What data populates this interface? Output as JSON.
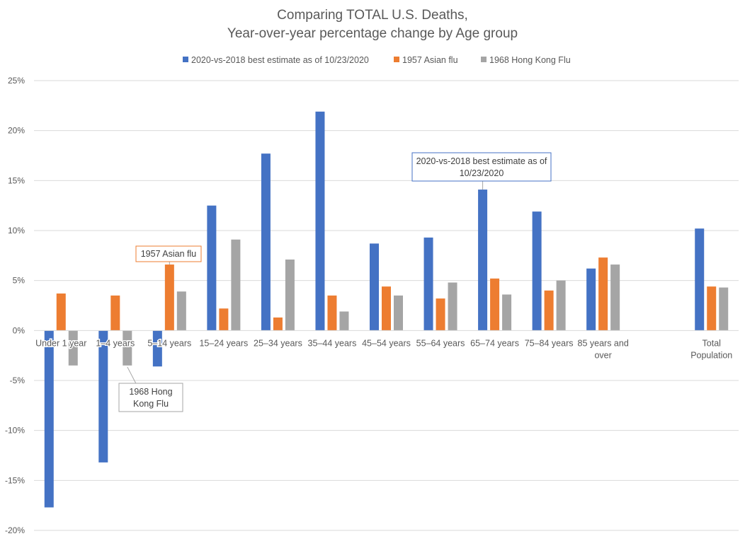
{
  "chart_data": {
    "type": "bar",
    "title": [
      "Comparing TOTAL U.S. Deaths,",
      "Year-over-year percentage change by Age group"
    ],
    "categories": [
      [
        "Under 1 year"
      ],
      [
        "1–4 years"
      ],
      [
        "5–14 years"
      ],
      [
        "15–24 years"
      ],
      [
        "25–34 years"
      ],
      [
        "35–44 years"
      ],
      [
        "45–54 years"
      ],
      [
        "55–64 years"
      ],
      [
        "65–74 years"
      ],
      [
        "75–84 years"
      ],
      [
        "85 years and",
        "over"
      ],
      [
        ""
      ],
      [
        "Total",
        "Population"
      ]
    ],
    "series": [
      {
        "name": "2020-vs-2018 best estimate as of 10/23/2020",
        "color": "#4472C4",
        "values": [
          -17.7,
          -13.2,
          -3.6,
          12.5,
          17.7,
          21.9,
          8.7,
          9.3,
          14.1,
          11.9,
          6.2,
          null,
          10.2
        ]
      },
      {
        "name": "1957 Asian flu",
        "color": "#ED7D31",
        "values": [
          3.7,
          3.5,
          6.6,
          2.2,
          1.3,
          3.5,
          4.4,
          3.2,
          5.2,
          4.0,
          7.3,
          null,
          4.4
        ]
      },
      {
        "name": "1968 Hong Kong Flu",
        "color": "#A5A5A5",
        "values": [
          -3.5,
          -3.5,
          3.9,
          9.1,
          7.1,
          1.9,
          3.5,
          4.8,
          3.6,
          5.0,
          6.6,
          null,
          4.3
        ]
      }
    ],
    "ylim": [
      -20,
      25
    ],
    "yticks": [
      25,
      20,
      15,
      10,
      5,
      0,
      -5,
      -10,
      -15,
      -20
    ],
    "ytick_labels": [
      "25%",
      "20%",
      "15%",
      "10%",
      "5%",
      "0%",
      "-5%",
      "-10%",
      "-15%",
      "-20%"
    ],
    "grid": true,
    "legend_position": "top",
    "annotations": [
      {
        "lines": [
          "2020-vs-2018 best estimate as of",
          "10/23/2020"
        ],
        "series": 0,
        "category": 8
      },
      {
        "lines": [
          "1957 Asian flu"
        ],
        "series": 1,
        "category": 2
      },
      {
        "lines": [
          "1968 Hong",
          "Kong Flu"
        ],
        "series": 2,
        "category": 1
      }
    ]
  }
}
